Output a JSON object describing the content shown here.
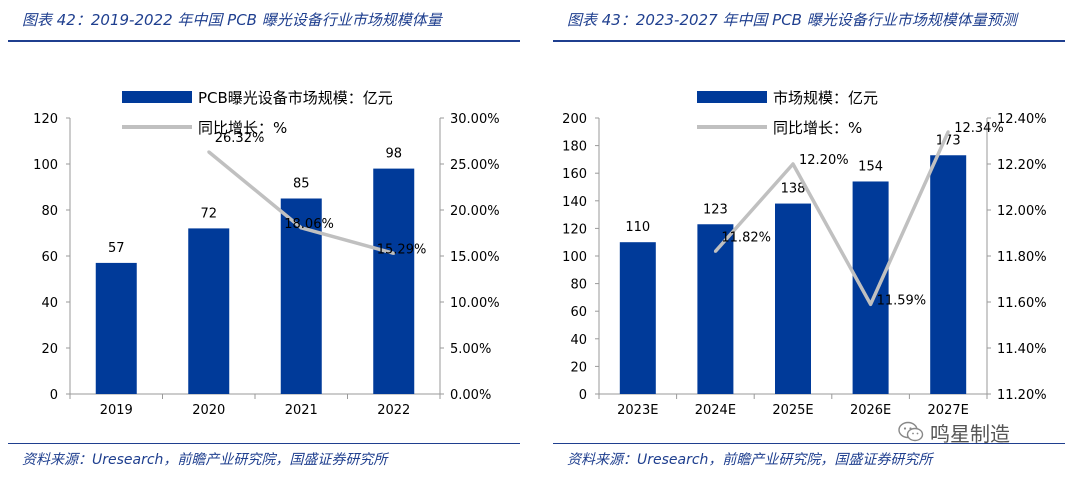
{
  "watermark": {
    "text": "鸣星制造",
    "icon": "wechat-icon"
  },
  "charts": [
    {
      "figure_title": "图表 42：2019-2022 年中国 PCB 曝光设备行业市场规模体量",
      "source": "资料来源：Uresearch，前瞻产业研究院，国盛证券研究所"
    },
    {
      "figure_title": "图表 43：2023-2027 年中国 PCB 曝光设备行业市场规模体量预测",
      "source": "资料来源：Uresearch，前瞻产业研究院，国盛证券研究所"
    }
  ],
  "chart_data": [
    {
      "type": "bar",
      "categories": [
        "2019",
        "2020",
        "2021",
        "2022"
      ],
      "series": [
        {
          "name": "PCB曝光设备市场规模：亿元",
          "kind": "bar",
          "axis": "left",
          "values": [
            57,
            72,
            85,
            98
          ],
          "labels": [
            "57",
            "72",
            "85",
            "98"
          ]
        },
        {
          "name": "同比增长：%",
          "kind": "line",
          "axis": "right",
          "values": [
            null,
            26.32,
            18.06,
            15.29
          ],
          "labels": [
            "",
            "26.32%",
            "18.06%",
            "15.29%"
          ]
        }
      ],
      "ylim": [
        0,
        120
      ],
      "yticks": [
        "0",
        "20",
        "40",
        "60",
        "80",
        "100",
        "120"
      ],
      "y2lim": [
        0,
        30
      ],
      "y2ticks": [
        "0.00%",
        "5.00%",
        "10.00%",
        "15.00%",
        "20.00%",
        "25.00%",
        "30.00%"
      ],
      "legend": "top",
      "grid": false,
      "colors": {
        "bar": "#003a99",
        "line": "#c0c0c0"
      }
    },
    {
      "type": "bar",
      "categories": [
        "2023E",
        "2024E",
        "2025E",
        "2026E",
        "2027E"
      ],
      "series": [
        {
          "name": "市场规模：亿元",
          "kind": "bar",
          "axis": "left",
          "values": [
            110,
            123,
            138,
            154,
            173
          ],
          "labels": [
            "110",
            "123",
            "138",
            "154",
            "173"
          ]
        },
        {
          "name": "同比增长：%",
          "kind": "line",
          "axis": "right",
          "values": [
            null,
            11.82,
            12.2,
            11.59,
            12.34
          ],
          "labels": [
            "",
            "11.82%",
            "12.20%",
            "11.59%",
            "12.34%"
          ]
        }
      ],
      "ylim": [
        0,
        200
      ],
      "yticks": [
        "0",
        "20",
        "40",
        "60",
        "80",
        "100",
        "120",
        "140",
        "160",
        "180",
        "200"
      ],
      "y2lim": [
        11.2,
        12.4
      ],
      "y2ticks": [
        "11.20%",
        "11.40%",
        "11.60%",
        "11.80%",
        "12.00%",
        "12.20%",
        "12.40%"
      ],
      "legend": "top",
      "grid": false,
      "colors": {
        "bar": "#003a99",
        "line": "#c0c0c0"
      }
    }
  ]
}
